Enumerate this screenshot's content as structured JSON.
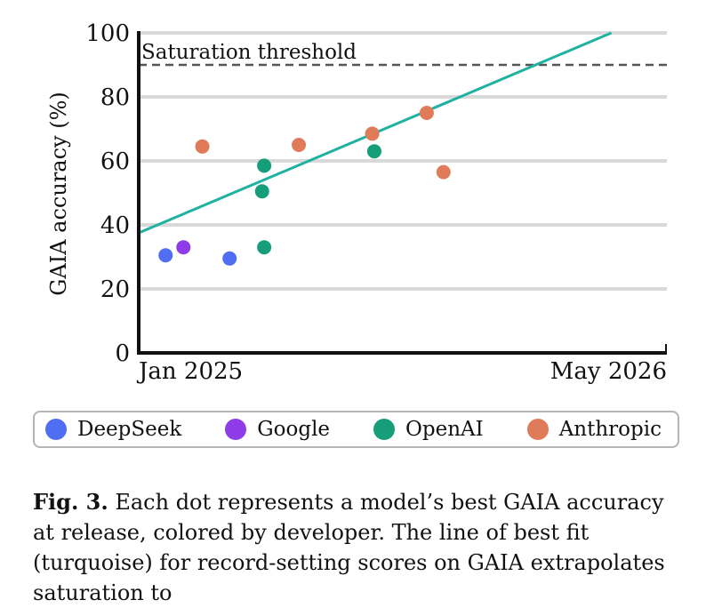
{
  "chart_data": {
    "type": "scatter",
    "ylabel": "GAIA accuracy (%)",
    "xlabel": "",
    "ylim": [
      0,
      100
    ],
    "yticks": [
      0,
      20,
      40,
      60,
      80,
      100
    ],
    "x_range": [
      "2025-01-01",
      "2026-05-01"
    ],
    "x_tick_labels": [
      {
        "date": "2025-01-01",
        "label": "Jan 2025"
      },
      {
        "date": "2026-05-01",
        "label": "May 2026"
      }
    ],
    "grid": true,
    "legend_placement": "bottom",
    "threshold": {
      "label": "Saturation threshold",
      "y": 90
    },
    "fit_line": {
      "color": "#20b2a0",
      "start": {
        "x": "2024-12-01",
        "y": 37.5
      },
      "end": {
        "x": "2026-03-09",
        "y": 100
      }
    },
    "series": [
      {
        "name": "DeepSeek",
        "color": "#4f6ef2",
        "points": [
          {
            "x": "2025-01-08",
            "y": 30.5
          },
          {
            "x": "2025-03-10",
            "y": 29.5
          }
        ]
      },
      {
        "name": "Google",
        "color": "#8e3be8",
        "points": [
          {
            "x": "2025-01-25",
            "y": 33
          }
        ]
      },
      {
        "name": "OpenAI",
        "color": "#169e7a",
        "points": [
          {
            "x": "2025-04-12",
            "y": 58.5
          },
          {
            "x": "2025-04-10",
            "y": 50.5
          },
          {
            "x": "2025-04-12",
            "y": 33
          },
          {
            "x": "2025-07-26",
            "y": 63
          }
        ]
      },
      {
        "name": "Anthropic",
        "color": "#e07b5a",
        "points": [
          {
            "x": "2025-02-12",
            "y": 64.5
          },
          {
            "x": "2025-05-15",
            "y": 65
          },
          {
            "x": "2025-07-24",
            "y": 68.5
          },
          {
            "x": "2025-09-14",
            "y": 75
          },
          {
            "x": "2025-09-30",
            "y": 56.5
          }
        ]
      }
    ]
  },
  "caption": {
    "label": "Fig. 3.",
    "text": " Each dot represents a model’s best GAIA accuracy at release, colored by developer. The line of best fit (turquoise) for record-setting scores on GAIA extrapolates saturation to"
  }
}
